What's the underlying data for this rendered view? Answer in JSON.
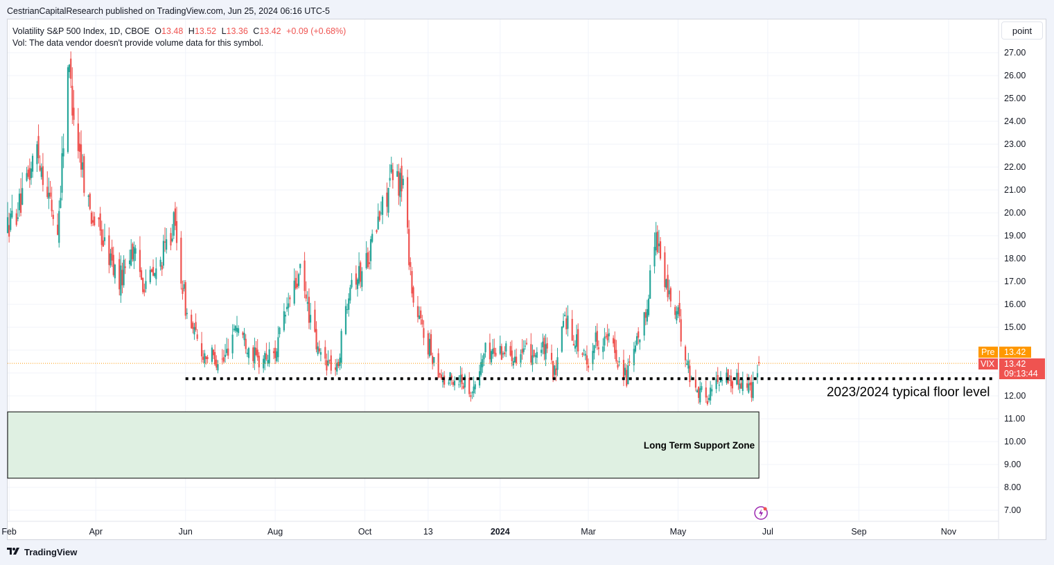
{
  "header": {
    "published_text": "CestrianCapitalResearch published on TradingView.com, Jun 25, 2024 06:16 UTC-5"
  },
  "legend": {
    "symbol_line": "Volatility S&P 500 Index, 1D, CBOE",
    "o_label": "O",
    "o_value": "13.48",
    "h_label": "H",
    "h_value": "13.52",
    "l_label": "L",
    "l_value": "13.36",
    "c_label": "C",
    "c_value": "13.42",
    "change": "+0.09 (+0.68%)",
    "vol_text": "Vol: The data vendor doesn't provide volume data for this symbol."
  },
  "toolbar": {
    "scale_button": "point"
  },
  "footer": {
    "brand": "TradingView",
    "logo_icon": "tradingview-logo-icon"
  },
  "colors": {
    "up": "#26a69a",
    "down": "#ef5350",
    "pre_badge": "#ff9800",
    "last_badge": "#ef5350",
    "zone_fill": "#dff0e2"
  },
  "chart_data": {
    "type": "candlestick",
    "symbol": "VIX",
    "title": "Volatility S&P 500 Index, 1D, CBOE",
    "y_ticks": [
      "27.00",
      "26.00",
      "25.00",
      "24.00",
      "23.00",
      "22.00",
      "21.00",
      "20.00",
      "19.00",
      "18.00",
      "17.00",
      "16.00",
      "15.00",
      "14.00",
      "13.00",
      "12.00",
      "11.00",
      "10.00",
      "9.00",
      "8.00",
      "7.00"
    ],
    "y_tick_values": [
      27,
      26,
      25,
      24,
      23,
      22,
      21,
      20,
      19,
      18,
      17,
      16,
      15,
      14,
      13,
      12,
      11,
      10,
      9,
      8,
      7
    ],
    "ylim": [
      6.5,
      28.5
    ],
    "x_ticks": [
      "Feb",
      "Apr",
      "Jun",
      "Aug",
      "Oct",
      "13",
      "2024",
      "Mar",
      "May",
      "Jul",
      "Sep",
      "Nov"
    ],
    "x_tick_dates": [
      "2023-02-01",
      "2023-04-01",
      "2023-06-01",
      "2023-08-01",
      "2023-10-01",
      "2023-11-13",
      "2024-01-01",
      "2024-03-01",
      "2024-05-01",
      "2024-07-01",
      "2024-09-01",
      "2024-11-01"
    ],
    "xlim": [
      "2023-01-31",
      "2024-12-05"
    ],
    "last_date": "2024-06-25",
    "price_path": [
      [
        "2023-01-31",
        19.4
      ],
      [
        "2023-02-10",
        20.5
      ],
      [
        "2023-02-20",
        22.9
      ],
      [
        "2023-02-28",
        20.7
      ],
      [
        "2023-03-06",
        19.1
      ],
      [
        "2023-03-13",
        26.5
      ],
      [
        "2023-03-20",
        23.0
      ],
      [
        "2023-03-28",
        20.1
      ],
      [
        "2023-04-05",
        18.9
      ],
      [
        "2023-04-17",
        17.0
      ],
      [
        "2023-04-25",
        18.5
      ],
      [
        "2023-05-03",
        17.0
      ],
      [
        "2023-05-12",
        17.3
      ],
      [
        "2023-05-24",
        19.5
      ],
      [
        "2023-06-02",
        15.5
      ],
      [
        "2023-06-12",
        13.9
      ],
      [
        "2023-06-27",
        13.5
      ],
      [
        "2023-07-05",
        15.2
      ],
      [
        "2023-07-20",
        13.5
      ],
      [
        "2023-08-01",
        13.9
      ],
      [
        "2023-08-10",
        16.0
      ],
      [
        "2023-08-18",
        17.3
      ],
      [
        "2023-08-30",
        13.9
      ],
      [
        "2023-09-12",
        13.1
      ],
      [
        "2023-09-21",
        17.2
      ],
      [
        "2023-09-28",
        17.3
      ],
      [
        "2023-10-05",
        18.5
      ],
      [
        "2023-10-19",
        21.5
      ],
      [
        "2023-10-27",
        21.3
      ],
      [
        "2023-11-03",
        16.0
      ],
      [
        "2023-11-13",
        14.2
      ],
      [
        "2023-11-24",
        12.6
      ],
      [
        "2023-12-05",
        12.8
      ],
      [
        "2023-12-14",
        12.2
      ],
      [
        "2023-12-21",
        13.9
      ],
      [
        "2024-01-03",
        14.0
      ],
      [
        "2024-01-17",
        13.8
      ],
      [
        "2024-01-31",
        14.0
      ],
      [
        "2024-02-08",
        12.8
      ],
      [
        "2024-02-13",
        15.6
      ],
      [
        "2024-02-29",
        13.4
      ],
      [
        "2024-03-06",
        14.5
      ],
      [
        "2024-03-15",
        14.4
      ],
      [
        "2024-03-27",
        12.8
      ],
      [
        "2024-04-08",
        15.2
      ],
      [
        "2024-04-16",
        19.2
      ],
      [
        "2024-04-22",
        16.9
      ],
      [
        "2024-05-01",
        15.4
      ],
      [
        "2024-05-10",
        12.6
      ],
      [
        "2024-05-21",
        11.9
      ],
      [
        "2024-05-31",
        13.0
      ],
      [
        "2024-06-06",
        12.6
      ],
      [
        "2024-06-14",
        12.7
      ],
      [
        "2024-06-20",
        12.3
      ],
      [
        "2024-06-25",
        13.42
      ]
    ],
    "annotations": {
      "floor_line": {
        "value": 12.75,
        "start": "2023-06-01",
        "end": "2024-12-01",
        "style": "dotted",
        "label": "2023/2024 typical floor level"
      },
      "support_zone": {
        "top": 11.3,
        "bottom": 8.4,
        "start": "2023-01-31",
        "end": "2024-06-25",
        "label": "Long Term Support Zone"
      }
    },
    "price_labels": {
      "pre": {
        "tag": "Pre",
        "value": "13.42"
      },
      "last": {
        "tag": "VIX",
        "value": "13.42",
        "countdown": "09:13:44"
      }
    }
  }
}
